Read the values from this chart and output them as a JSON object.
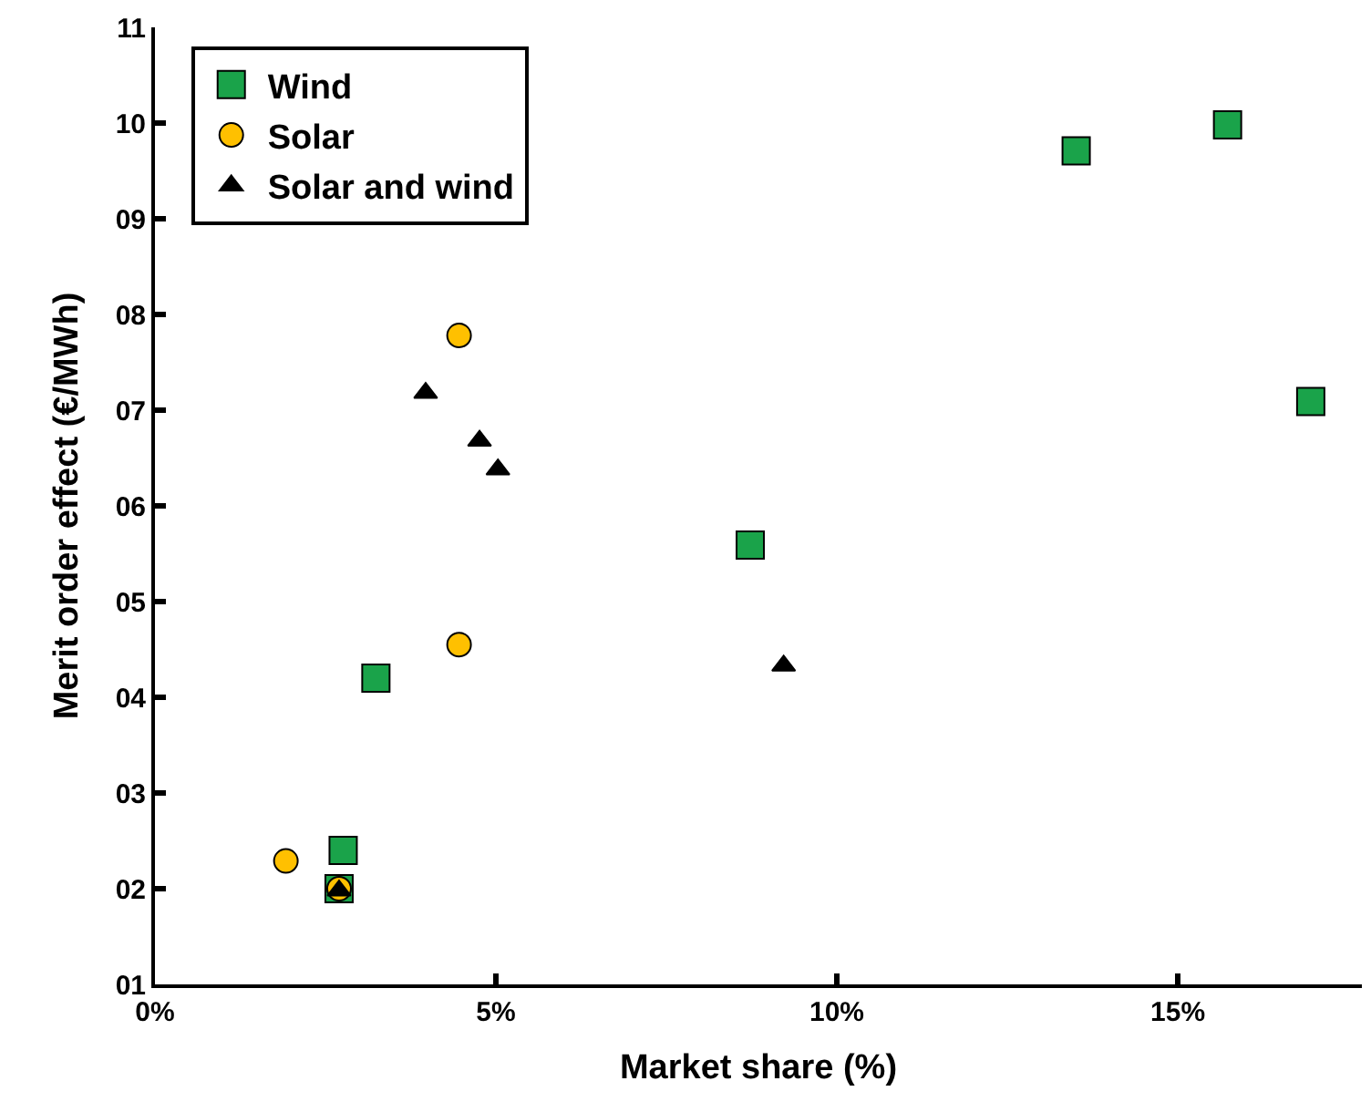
{
  "chart_data": {
    "type": "scatter",
    "xlabel": "Market share (%)",
    "ylabel": "Merit order effect (€/MWh)",
    "xlim": [
      0,
      17.7
    ],
    "xticks": [
      {
        "value": 0,
        "label": "0%"
      },
      {
        "value": 5,
        "label": "5%"
      },
      {
        "value": 10,
        "label": "10%"
      },
      {
        "value": 15,
        "label": "15%"
      }
    ],
    "ylim": [
      1,
      11
    ],
    "yticks": [
      {
        "value": 1,
        "label": "01"
      },
      {
        "value": 2,
        "label": "02"
      },
      {
        "value": 3,
        "label": "03"
      },
      {
        "value": 4,
        "label": "04"
      },
      {
        "value": 5,
        "label": "05"
      },
      {
        "value": 6,
        "label": "06"
      },
      {
        "value": 7,
        "label": "07"
      },
      {
        "value": 8,
        "label": "08"
      },
      {
        "value": 9,
        "label": "09"
      },
      {
        "value": 10,
        "label": "10"
      },
      {
        "value": 11,
        "label": "11"
      }
    ],
    "legend": "top left",
    "series": [
      {
        "name": "Wind",
        "color": "#1aa34a",
        "marker": "square",
        "x": [
          2.76,
          2.7,
          3.24,
          8.73,
          13.51,
          15.73,
          16.95
        ],
        "values": [
          2.4,
          2.0,
          4.2,
          5.59,
          9.71,
          9.98,
          7.09
        ]
      },
      {
        "name": "Solar",
        "color": "#ffc000",
        "marker": "circle",
        "x": [
          1.92,
          2.7,
          4.46,
          4.46
        ],
        "values": [
          2.29,
          2.0,
          4.55,
          7.78
        ]
      },
      {
        "name": "Solar and wind",
        "color": "#000000",
        "marker": "triangle",
        "x": [
          2.7,
          3.97,
          4.76,
          5.03,
          9.22
        ],
        "values": [
          1.98,
          7.18,
          6.68,
          6.38,
          4.33
        ]
      }
    ]
  }
}
